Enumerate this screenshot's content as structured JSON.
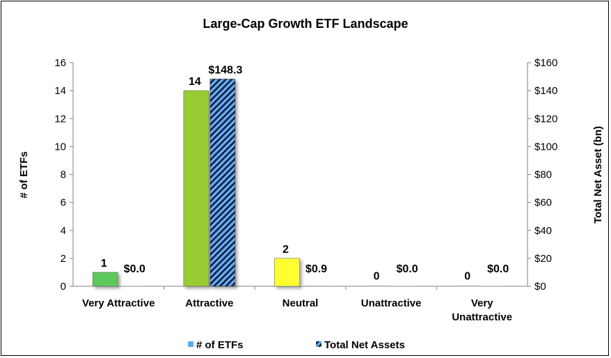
{
  "chart_data": {
    "type": "bar",
    "title": "Large-Cap Growth ETF Landscape",
    "categories": [
      [
        "Very Attractive"
      ],
      [
        "Attractive"
      ],
      [
        "Neutral"
      ],
      [
        "Unattractive"
      ],
      [
        "Very",
        "Unattractive"
      ]
    ],
    "ylabel_left": "# of ETFs",
    "ylabel_right": "Total Net Asset (bn)",
    "ylim_left": [
      0,
      16
    ],
    "yticks_left": [
      "0",
      "2",
      "4",
      "6",
      "8",
      "10",
      "12",
      "14",
      "16"
    ],
    "ylim_right": [
      0,
      160
    ],
    "yticks_right": [
      "$0",
      "$20",
      "$40",
      "$60",
      "$80",
      "$100",
      "$120",
      "$140",
      "$160"
    ],
    "series": [
      {
        "name": "# of ETFs",
        "axis": "left",
        "values": [
          1,
          14,
          2,
          0,
          0
        ],
        "labels": [
          "1",
          "14",
          "2",
          "0",
          "0"
        ],
        "colors": [
          "#5cc85c",
          "#99cc33",
          "#ffff33",
          "#c8c8c8",
          "#c8c8c8"
        ]
      },
      {
        "name": "Total Net Assets",
        "axis": "right",
        "values": [
          0.0,
          148.3,
          0.9,
          0.0,
          0.0
        ],
        "labels": [
          "$0.0",
          "$148.3",
          "$0.9",
          "$0.0",
          "$0.0"
        ]
      }
    ],
    "legend_position": "bottom",
    "grid": false
  },
  "colors": {
    "legend_etfs": "#5aaaf0",
    "hatch_blue": "#66aaee",
    "hatch_dark": "#0a1a3a",
    "axis": "#808080"
  }
}
